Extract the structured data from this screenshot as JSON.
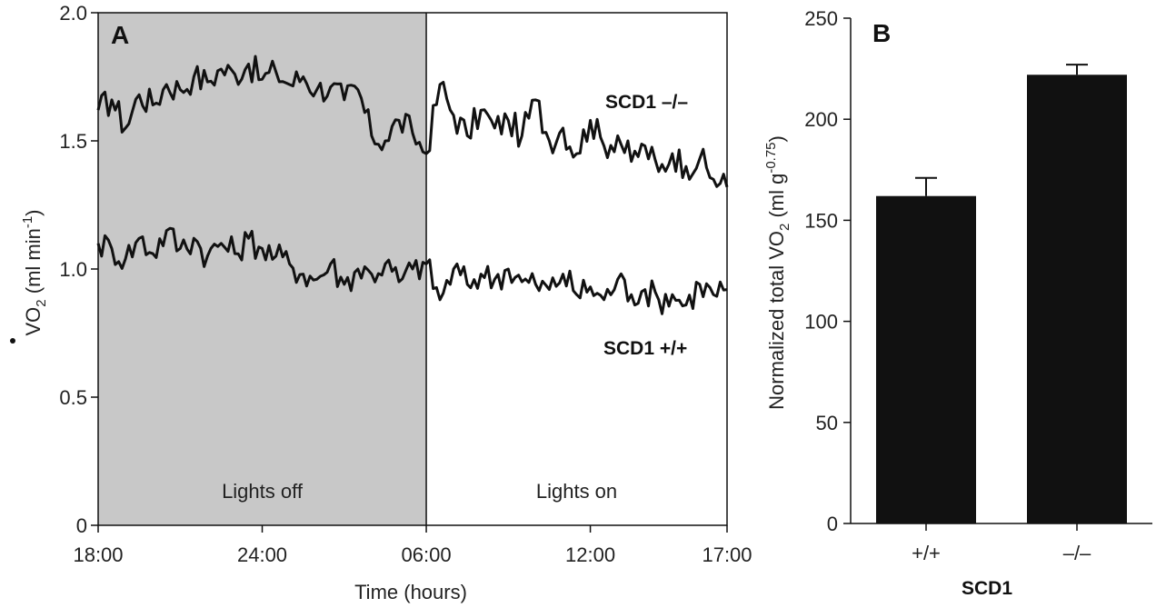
{
  "chart_data": [
    {
      "type": "line",
      "panel": "A",
      "xlabel": "Time (hours)",
      "ylabel_main": "VO",
      "ylabel_sub": "2",
      "ylabel_unit": " (ml min",
      "ylabel_sup": "-1",
      "ylabel_close": ")",
      "x_ticks": [
        "18:00",
        "24:00",
        "06:00",
        "12:00",
        "17:00"
      ],
      "x_tick_hours": [
        0,
        6,
        12,
        18,
        23
      ],
      "xlim_hours": [
        0,
        23
      ],
      "ylim": [
        0,
        2.0
      ],
      "y_ticks": [
        0,
        0.5,
        1.0,
        1.5,
        2.0
      ],
      "y_tick_labels": [
        "0",
        "0.5",
        "1.0",
        "1.5",
        "2.0"
      ],
      "regions": [
        {
          "label": "Lights off",
          "start_hour": 0,
          "end_hour": 12,
          "color": "#c8c8c8"
        },
        {
          "label": "Lights on",
          "start_hour": 12,
          "end_hour": 23,
          "color": "#ffffff"
        }
      ],
      "series": [
        {
          "name": "SCD1 –/–",
          "x_hours": [
            0,
            0.5,
            1,
            1.5,
            2,
            2.5,
            3,
            3.5,
            4,
            4.5,
            5,
            5.5,
            6,
            6.5,
            7,
            7.5,
            8,
            8.5,
            9,
            9.5,
            10,
            10.5,
            11,
            11.5,
            12,
            12.5,
            13,
            13.5,
            14,
            14.5,
            15,
            15.5,
            16,
            16.5,
            17,
            17.5,
            18,
            18.5,
            19,
            19.5,
            20,
            20.5,
            21,
            21.5,
            22,
            22.5,
            23
          ],
          "values": [
            1.62,
            1.66,
            1.55,
            1.68,
            1.64,
            1.72,
            1.7,
            1.75,
            1.73,
            1.78,
            1.76,
            1.8,
            1.74,
            1.77,
            1.72,
            1.75,
            1.7,
            1.71,
            1.66,
            1.7,
            1.52,
            1.5,
            1.58,
            1.53,
            1.45,
            1.72,
            1.6,
            1.52,
            1.62,
            1.55,
            1.58,
            1.52,
            1.66,
            1.5,
            1.55,
            1.45,
            1.58,
            1.48,
            1.52,
            1.42,
            1.48,
            1.38,
            1.45,
            1.4,
            1.43,
            1.35,
            1.32
          ]
        },
        {
          "name": "SCD1 +/+",
          "x_hours": [
            0,
            0.5,
            1,
            1.5,
            2,
            2.5,
            3,
            3.5,
            4,
            4.5,
            5,
            5.5,
            6,
            6.5,
            7,
            7.5,
            8,
            8.5,
            9,
            9.5,
            10,
            10.5,
            11,
            11.5,
            12,
            12.5,
            13,
            13.5,
            14,
            14.5,
            15,
            15.5,
            16,
            16.5,
            17,
            17.5,
            18,
            18.5,
            19,
            19.5,
            20,
            20.5,
            21,
            21.5,
            22,
            22.5,
            23
          ],
          "values": [
            1.1,
            1.08,
            1.04,
            1.12,
            1.06,
            1.15,
            1.08,
            1.12,
            1.05,
            1.1,
            1.06,
            1.12,
            1.08,
            1.05,
            1.02,
            0.98,
            0.96,
            1.02,
            0.94,
            1.0,
            0.98,
            1.02,
            0.95,
            1.0,
            1.02,
            0.88,
            1.0,
            0.94,
            0.98,
            0.96,
            1.0,
            0.95,
            0.94,
            0.92,
            0.98,
            0.9,
            0.93,
            0.88,
            0.96,
            0.9,
            0.92,
            0.88,
            0.9,
            0.86,
            0.94,
            0.9,
            0.92
          ]
        }
      ]
    },
    {
      "type": "bar",
      "panel": "B",
      "categories": [
        "+/+",
        "–/–"
      ],
      "values": [
        162,
        222
      ],
      "errors": [
        9,
        5
      ],
      "xlabel": "SCD1",
      "ylabel_main": "Normalized total VO",
      "ylabel_sub": "2",
      "ylabel_unit": " (ml g",
      "ylabel_sup": "-0.75",
      "ylabel_close": ")",
      "ylim": [
        0,
        250
      ],
      "y_ticks": [
        0,
        50,
        100,
        150,
        200,
        250
      ],
      "y_tick_labels": [
        "0",
        "50",
        "100",
        "150",
        "200",
        "250"
      ],
      "bar_color": "#111111"
    }
  ]
}
